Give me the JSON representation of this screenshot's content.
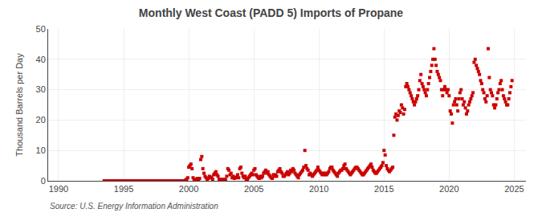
{
  "chart_data": {
    "type": "scatter",
    "title": "Monthly West Coast (PADD 5) Imports of Propane",
    "ylabel": "Thousand Barrels per Day",
    "annotations": [
      "Source: U.S. Energy Information Administration"
    ],
    "color": "#cc0000",
    "marker": "square",
    "grid": true,
    "xlim": [
      1989.2,
      2025.9
    ],
    "xticks": [
      1990,
      1995,
      2000,
      2005,
      2010,
      2015,
      2020,
      2025
    ],
    "ylim": [
      0,
      50
    ],
    "yticks": [
      0,
      10,
      20,
      30,
      40,
      50
    ],
    "x": [
      1993.5,
      1993.583,
      1993.667,
      1993.75,
      1993.833,
      1993.917,
      1994.0,
      1994.083,
      1994.167,
      1994.25,
      1994.333,
      1994.417,
      1994.5,
      1994.583,
      1994.667,
      1994.75,
      1994.833,
      1994.917,
      1995.0,
      1995.083,
      1995.167,
      1995.25,
      1995.333,
      1995.417,
      1995.5,
      1995.583,
      1995.667,
      1995.75,
      1995.833,
      1995.917,
      1996.0,
      1996.083,
      1996.167,
      1996.25,
      1996.333,
      1996.417,
      1996.5,
      1996.583,
      1996.667,
      1996.75,
      1996.833,
      1996.917,
      1997.0,
      1997.083,
      1997.167,
      1997.25,
      1997.333,
      1997.417,
      1997.5,
      1997.583,
      1997.667,
      1997.75,
      1997.833,
      1997.917,
      1998.0,
      1998.083,
      1998.167,
      1998.25,
      1998.333,
      1998.417,
      1998.5,
      1998.583,
      1998.667,
      1998.75,
      1998.833,
      1998.917,
      1999.0,
      1999.083,
      1999.167,
      1999.25,
      1999.333,
      1999.417,
      1999.5,
      1999.583,
      1999.667,
      1999.75,
      1999.833,
      1999.917,
      2000.0,
      2000.083,
      2000.167,
      2000.25,
      2000.333,
      2000.417,
      2000.5,
      2000.583,
      2000.667,
      2000.75,
      2000.833,
      2000.917,
      2001.0,
      2001.083,
      2001.167,
      2001.25,
      2001.333,
      2001.417,
      2001.5,
      2001.583,
      2001.667,
      2001.75,
      2001.833,
      2001.917,
      2002.0,
      2002.083,
      2002.167,
      2002.25,
      2002.333,
      2002.417,
      2002.5,
      2002.583,
      2002.667,
      2002.75,
      2002.833,
      2002.917,
      2003.0,
      2003.083,
      2003.167,
      2003.25,
      2003.333,
      2003.417,
      2003.5,
      2003.583,
      2003.667,
      2003.75,
      2003.833,
      2003.917,
      2004.0,
      2004.083,
      2004.167,
      2004.25,
      2004.333,
      2004.417,
      2004.5,
      2004.583,
      2004.667,
      2004.75,
      2004.833,
      2004.917,
      2005.0,
      2005.083,
      2005.167,
      2005.25,
      2005.333,
      2005.417,
      2005.5,
      2005.583,
      2005.667,
      2005.75,
      2005.833,
      2005.917,
      2006.0,
      2006.083,
      2006.167,
      2006.25,
      2006.333,
      2006.417,
      2006.5,
      2006.583,
      2006.667,
      2006.75,
      2006.833,
      2006.917,
      2007.0,
      2007.083,
      2007.167,
      2007.25,
      2007.333,
      2007.417,
      2007.5,
      2007.583,
      2007.667,
      2007.75,
      2007.833,
      2007.917,
      2008.0,
      2008.083,
      2008.167,
      2008.25,
      2008.333,
      2008.417,
      2008.5,
      2008.583,
      2008.667,
      2008.75,
      2008.833,
      2008.917,
      2009.0,
      2009.083,
      2009.167,
      2009.25,
      2009.333,
      2009.417,
      2009.5,
      2009.583,
      2009.667,
      2009.75,
      2009.833,
      2009.917,
      2010.0,
      2010.083,
      2010.167,
      2010.25,
      2010.333,
      2010.417,
      2010.5,
      2010.583,
      2010.667,
      2010.75,
      2010.833,
      2010.917,
      2011.0,
      2011.083,
      2011.167,
      2011.25,
      2011.333,
      2011.417,
      2011.5,
      2011.583,
      2011.667,
      2011.75,
      2011.833,
      2011.917,
      2012.0,
      2012.083,
      2012.167,
      2012.25,
      2012.333,
      2012.417,
      2012.5,
      2012.583,
      2012.667,
      2012.75,
      2012.833,
      2012.917,
      2013.0,
      2013.083,
      2013.167,
      2013.25,
      2013.333,
      2013.417,
      2013.5,
      2013.583,
      2013.667,
      2013.75,
      2013.833,
      2013.917,
      2014.0,
      2014.083,
      2014.167,
      2014.25,
      2014.333,
      2014.417,
      2014.5,
      2014.583,
      2014.667,
      2014.75,
      2014.833,
      2014.917,
      2015.0,
      2015.083,
      2015.167,
      2015.25,
      2015.333,
      2015.417,
      2015.5,
      2015.583,
      2015.667,
      2015.75,
      2015.833,
      2015.917,
      2016.0,
      2016.083,
      2016.167,
      2016.25,
      2016.333,
      2016.417,
      2016.5,
      2016.583,
      2016.667,
      2016.75,
      2016.833,
      2016.917,
      2017.0,
      2017.083,
      2017.167,
      2017.25,
      2017.333,
      2017.417,
      2017.5,
      2017.583,
      2017.667,
      2017.75,
      2017.833,
      2017.917,
      2018.0,
      2018.083,
      2018.167,
      2018.25,
      2018.333,
      2018.417,
      2018.5,
      2018.583,
      2018.667,
      2018.75,
      2018.833,
      2018.917,
      2019.0,
      2019.083,
      2019.167,
      2019.25,
      2019.333,
      2019.417,
      2019.5,
      2019.583,
      2019.667,
      2019.75,
      2019.833,
      2019.917,
      2020.0,
      2020.083,
      2020.167,
      2020.25,
      2020.333,
      2020.417,
      2020.5,
      2020.583,
      2020.667,
      2020.75,
      2020.833,
      2020.917,
      2021.0,
      2021.083,
      2021.167,
      2021.25,
      2021.333,
      2021.417,
      2021.5,
      2021.583,
      2021.667,
      2021.75,
      2021.833,
      2021.917,
      2022.0,
      2022.083,
      2022.167,
      2022.25,
      2022.333,
      2022.417,
      2022.5,
      2022.583,
      2022.667,
      2022.75,
      2022.833,
      2022.917,
      2023.0,
      2023.083,
      2023.167,
      2023.25,
      2023.333,
      2023.417,
      2023.5,
      2023.583,
      2023.667,
      2023.75,
      2023.833,
      2023.917,
      2024.0,
      2024.083,
      2024.167,
      2024.25,
      2024.333,
      2024.417,
      2024.5,
      2024.583,
      2024.667,
      2024.75,
      2024.833
    ],
    "values": [
      0,
      0,
      0,
      0,
      0,
      0,
      0,
      0,
      0,
      0,
      0,
      0,
      0,
      0,
      0,
      0,
      0,
      0,
      0,
      0,
      0,
      0,
      0,
      0,
      0,
      0,
      0,
      0,
      0,
      0,
      0,
      0,
      0,
      0,
      0,
      0,
      0,
      0,
      0,
      0,
      0,
      0,
      0,
      0,
      0,
      0,
      0,
      0,
      0,
      0,
      0,
      0,
      0,
      0,
      0,
      0,
      0,
      0,
      0,
      0,
      0,
      0,
      0,
      0,
      0,
      0,
      0,
      0,
      0,
      0,
      0,
      0,
      0,
      0,
      0,
      0.2,
      0.5,
      1.0,
      4.5,
      5.0,
      5.5,
      4.0,
      1.0,
      0.5,
      0.3,
      0.5,
      0.8,
      0.3,
      0.8,
      7.0,
      8.0,
      4.0,
      2.5,
      1.5,
      1.0,
      0.5,
      0.8,
      1.5,
      1.0,
      1.2,
      0.5,
      2.0,
      2.5,
      3.0,
      2.0,
      1.5,
      0.5,
      0.3,
      0.2,
      0.5,
      0.3,
      0.5,
      0.3,
      1.5,
      4.0,
      3.5,
      2.0,
      2.5,
      1.0,
      1.5,
      0.8,
      1.0,
      1.2,
      2.0,
      1.0,
      4.0,
      4.5,
      2.5,
      1.5,
      1.0,
      1.5,
      0.5,
      0.5,
      1.0,
      1.5,
      2.0,
      2.5,
      2.0,
      3.5,
      4.0,
      2.0,
      1.5,
      1.0,
      0.8,
      1.5,
      1.0,
      1.5,
      2.5,
      3.0,
      3.5,
      2.5,
      3.0,
      2.0,
      1.5,
      1.0,
      0.8,
      2.0,
      1.5,
      2.0,
      1.5,
      3.0,
      3.5,
      4.0,
      3.0,
      2.5,
      1.5,
      1.5,
      2.0,
      2.5,
      3.0,
      2.0,
      2.5,
      3.5,
      3.0,
      4.0,
      3.5,
      2.5,
      2.0,
      1.5,
      1.0,
      2.0,
      2.5,
      3.0,
      3.5,
      4.5,
      10.0,
      5.0,
      4.0,
      3.5,
      2.0,
      2.5,
      2.0,
      1.5,
      2.0,
      2.5,
      3.0,
      3.5,
      4.5,
      3.5,
      3.0,
      2.5,
      2.0,
      2.5,
      2.0,
      2.5,
      2.0,
      2.5,
      3.0,
      4.0,
      4.5,
      4.5,
      3.5,
      3.0,
      2.5,
      2.0,
      1.5,
      2.5,
      3.0,
      3.5,
      3.5,
      4.0,
      5.0,
      5.5,
      4.0,
      3.5,
      3.0,
      2.5,
      2.0,
      2.5,
      3.0,
      3.5,
      4.0,
      4.5,
      4.5,
      4.0,
      3.5,
      3.0,
      2.5,
      2.0,
      2.0,
      2.5,
      3.0,
      3.5,
      4.0,
      4.5,
      5.0,
      5.5,
      4.5,
      3.5,
      3.0,
      2.5,
      2.5,
      3.0,
      3.5,
      4.0,
      4.5,
      5.0,
      6.0,
      10.0,
      8.5,
      5.0,
      4.0,
      3.5,
      3.0,
      3.5,
      4.0,
      4.5,
      15.0,
      21.0,
      22.0,
      20.0,
      21.5,
      23.0,
      22.5,
      25.0,
      24.0,
      22.0,
      23.5,
      31.0,
      32.0,
      31.0,
      30.0,
      29.0,
      28.0,
      27.0,
      26.0,
      25.0,
      26.0,
      27.0,
      28.0,
      30.0,
      33.0,
      35.0,
      32.0,
      31.0,
      30.0,
      29.0,
      28.0,
      30.0,
      32.0,
      34.0,
      36.0,
      38.0,
      40.0,
      43.5,
      40.0,
      38.0,
      36.0,
      35.0,
      34.0,
      33.0,
      30.0,
      28.0,
      30.0,
      31.0,
      30.0,
      29.0,
      30.0,
      28.0,
      23.0,
      22.0,
      19.0,
      25.0,
      26.0,
      27.0,
      25.0,
      23.0,
      27.0,
      29.0,
      30.0,
      27.0,
      25.0,
      26.0,
      24.0,
      22.0,
      23.0,
      25.0,
      26.0,
      27.0,
      28.0,
      29.0,
      39.0,
      40.0,
      38.0,
      37.0,
      36.0,
      35.0,
      33.0,
      32.0,
      30.0,
      29.0,
      27.0,
      26.0,
      28.0,
      43.5,
      34.0,
      30.0,
      29.0,
      28.0,
      25.0,
      24.0,
      25.0,
      27.0,
      29.0,
      30.0,
      32.0,
      33.0,
      30.0,
      28.0,
      27.0,
      26.0,
      25.0,
      25.0,
      27.0,
      29.0,
      31.0,
      33.0
    ]
  }
}
